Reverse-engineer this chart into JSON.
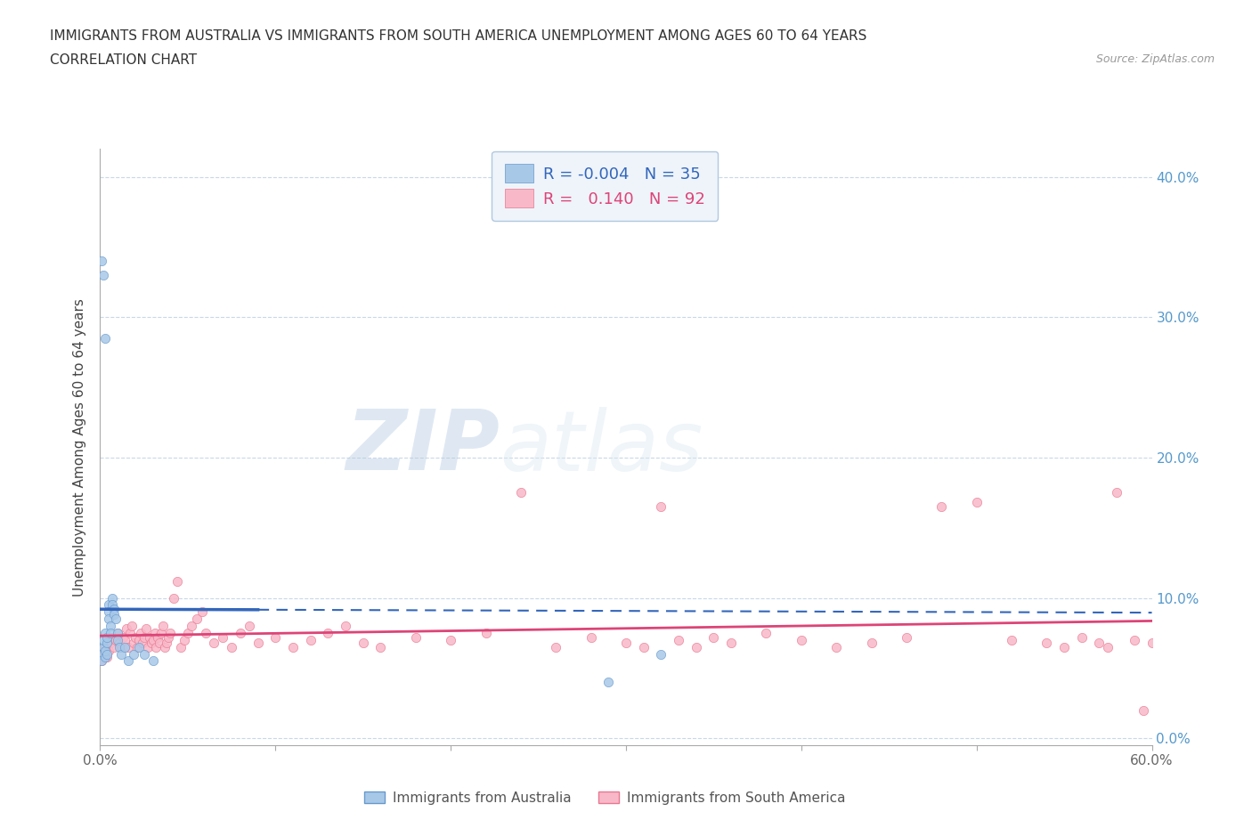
{
  "title_line1": "IMMIGRANTS FROM AUSTRALIA VS IMMIGRANTS FROM SOUTH AMERICA UNEMPLOYMENT AMONG AGES 60 TO 64 YEARS",
  "title_line2": "CORRELATION CHART",
  "source": "Source: ZipAtlas.com",
  "ylabel": "Unemployment Among Ages 60 to 64 years",
  "xlim": [
    0.0,
    0.6
  ],
  "ylim": [
    -0.005,
    0.42
  ],
  "xticks": [
    0.0,
    0.1,
    0.2,
    0.3,
    0.4,
    0.5,
    0.6
  ],
  "xtick_labels": [
    "0.0%",
    "",
    "",
    "",
    "",
    "",
    "60.0%"
  ],
  "yticks": [
    0.0,
    0.1,
    0.2,
    0.3,
    0.4
  ],
  "ytick_labels_right": [
    "0.0%",
    "10.0%",
    "20.0%",
    "30.0%",
    "40.0%"
  ],
  "australia_color": "#a8c8e8",
  "australia_edge": "#6699cc",
  "south_america_color": "#f8b8c8",
  "south_america_edge": "#e87890",
  "trend_blue_color": "#3366bb",
  "trend_pink_color": "#dd4477",
  "R_australia": -0.004,
  "N_australia": 35,
  "R_south_america": 0.14,
  "N_south_america": 92,
  "australia_x": [
    0.001,
    0.001,
    0.002,
    0.002,
    0.003,
    0.003,
    0.003,
    0.004,
    0.004,
    0.004,
    0.005,
    0.005,
    0.005,
    0.006,
    0.006,
    0.007,
    0.007,
    0.008,
    0.008,
    0.009,
    0.01,
    0.01,
    0.011,
    0.012,
    0.014,
    0.016,
    0.019,
    0.022,
    0.025,
    0.03,
    0.001,
    0.002,
    0.003,
    0.32,
    0.29
  ],
  "australia_y": [
    0.06,
    0.055,
    0.065,
    0.07,
    0.058,
    0.062,
    0.075,
    0.068,
    0.072,
    0.06,
    0.095,
    0.09,
    0.085,
    0.08,
    0.075,
    0.1,
    0.095,
    0.092,
    0.088,
    0.085,
    0.075,
    0.07,
    0.065,
    0.06,
    0.065,
    0.055,
    0.06,
    0.065,
    0.06,
    0.055,
    0.34,
    0.33,
    0.285,
    0.06,
    0.04
  ],
  "south_america_x": [
    0.001,
    0.002,
    0.003,
    0.004,
    0.005,
    0.006,
    0.007,
    0.008,
    0.009,
    0.01,
    0.011,
    0.012,
    0.013,
    0.014,
    0.015,
    0.016,
    0.017,
    0.018,
    0.019,
    0.02,
    0.021,
    0.022,
    0.023,
    0.024,
    0.025,
    0.026,
    0.027,
    0.028,
    0.029,
    0.03,
    0.031,
    0.032,
    0.033,
    0.034,
    0.035,
    0.036,
    0.037,
    0.038,
    0.039,
    0.04,
    0.042,
    0.044,
    0.046,
    0.048,
    0.05,
    0.052,
    0.055,
    0.058,
    0.06,
    0.065,
    0.07,
    0.075,
    0.08,
    0.085,
    0.09,
    0.1,
    0.11,
    0.12,
    0.13,
    0.14,
    0.15,
    0.16,
    0.18,
    0.2,
    0.22,
    0.24,
    0.26,
    0.28,
    0.3,
    0.31,
    0.32,
    0.33,
    0.34,
    0.35,
    0.36,
    0.38,
    0.4,
    0.42,
    0.44,
    0.46,
    0.48,
    0.5,
    0.52,
    0.54,
    0.55,
    0.56,
    0.57,
    0.575,
    0.58,
    0.59,
    0.595,
    0.6
  ],
  "south_america_y": [
    0.055,
    0.06,
    0.065,
    0.058,
    0.062,
    0.068,
    0.072,
    0.065,
    0.07,
    0.075,
    0.068,
    0.065,
    0.072,
    0.07,
    0.078,
    0.065,
    0.075,
    0.08,
    0.068,
    0.072,
    0.065,
    0.07,
    0.075,
    0.068,
    0.072,
    0.078,
    0.065,
    0.072,
    0.068,
    0.07,
    0.075,
    0.065,
    0.072,
    0.068,
    0.075,
    0.08,
    0.065,
    0.068,
    0.072,
    0.075,
    0.1,
    0.112,
    0.065,
    0.07,
    0.075,
    0.08,
    0.085,
    0.09,
    0.075,
    0.068,
    0.072,
    0.065,
    0.075,
    0.08,
    0.068,
    0.072,
    0.065,
    0.07,
    0.075,
    0.08,
    0.068,
    0.065,
    0.072,
    0.07,
    0.075,
    0.175,
    0.065,
    0.072,
    0.068,
    0.065,
    0.165,
    0.07,
    0.065,
    0.072,
    0.068,
    0.075,
    0.07,
    0.065,
    0.068,
    0.072,
    0.165,
    0.168,
    0.07,
    0.068,
    0.065,
    0.072,
    0.068,
    0.065,
    0.175,
    0.07,
    0.02,
    0.068
  ],
  "watermark_zip": "ZIP",
  "watermark_atlas": "atlas",
  "background_color": "#ffffff",
  "grid_color": "#c8d8e8",
  "marker_size": 55,
  "legend_box_color": "#eef4fa",
  "legend_edge_color": "#b0c8e0",
  "tick_color_right": "#5599cc",
  "tick_color_bottom": "#666666"
}
